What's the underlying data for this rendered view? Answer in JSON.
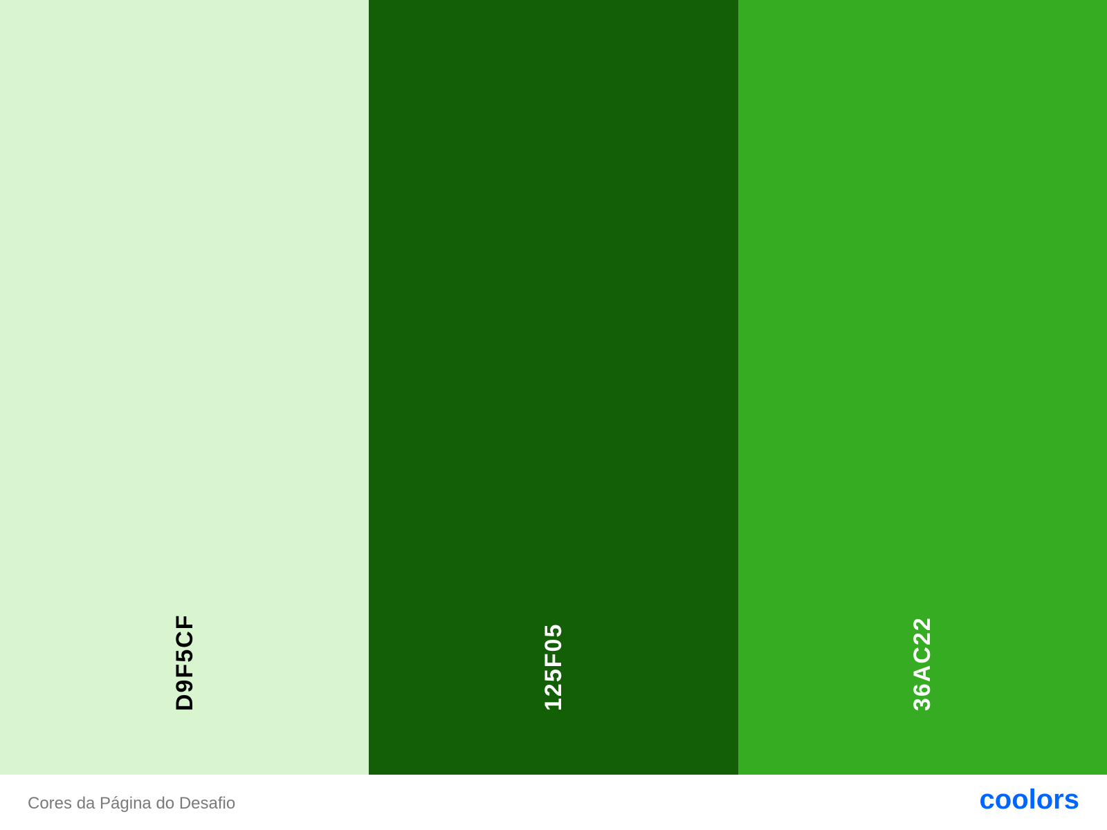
{
  "palette": {
    "colors": [
      {
        "hex": "D9F5CF",
        "background": "#D9F5CF",
        "text_color": "#000000"
      },
      {
        "hex": "125F05",
        "background": "#125F05",
        "text_color": "#FFFFFF"
      },
      {
        "hex": "36AC22",
        "background": "#36AC22",
        "text_color": "#FFFFFF"
      }
    ]
  },
  "footer": {
    "palette_name": "Cores da Página do Desafio",
    "brand": "coolors",
    "brand_color": "#0066FF"
  }
}
